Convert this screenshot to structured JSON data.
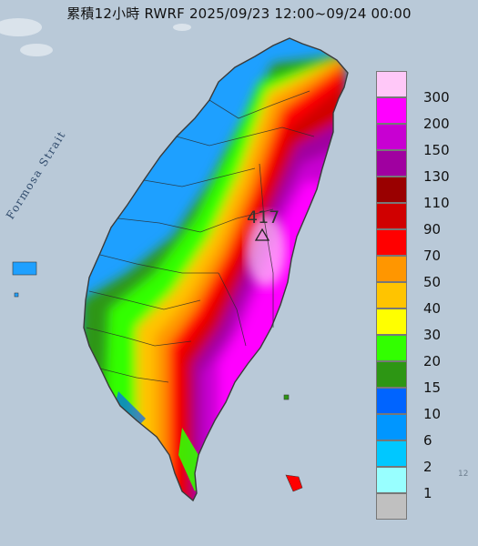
{
  "title": "累積12小時 RWRF 2025/09/23 12:00~09/24 00:00",
  "map": {
    "sea_label": "Formosa Strait",
    "max_value": "417",
    "max_marker": "triangle-icon",
    "corner_text": "12"
  },
  "colors": {
    "sea": "#b9c9d8",
    "border": "#2a2a2a",
    "coast": "#3a3a3a"
  },
  "legend": {
    "items": [
      {
        "label": "300",
        "color": "#ffc8f8"
      },
      {
        "label": "200",
        "color": "#ff00ff"
      },
      {
        "label": "150",
        "color": "#c800d2"
      },
      {
        "label": "130",
        "color": "#a000a0"
      },
      {
        "label": "110",
        "color": "#9a0000"
      },
      {
        "label": "90",
        "color": "#d00000"
      },
      {
        "label": "70",
        "color": "#ff0000"
      },
      {
        "label": "50",
        "color": "#ff9600"
      },
      {
        "label": "40",
        "color": "#ffc400"
      },
      {
        "label": "30",
        "color": "#ffff00"
      },
      {
        "label": "20",
        "color": "#32ff00"
      },
      {
        "label": "15",
        "color": "#2d9614"
      },
      {
        "label": "10",
        "color": "#0064ff"
      },
      {
        "label": "6",
        "color": "#0096ff"
      },
      {
        "label": "2",
        "color": "#00c8ff"
      },
      {
        "label": "1",
        "color": "#98ffff"
      },
      {
        "label": "",
        "color": "#c0c0c0"
      }
    ]
  }
}
